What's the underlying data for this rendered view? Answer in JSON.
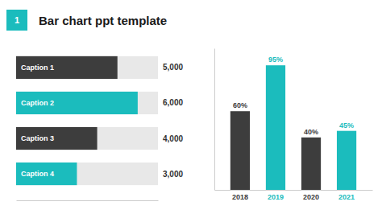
{
  "chart_data": [
    {
      "type": "bar",
      "orientation": "horizontal",
      "title": "Bar chart ppt template",
      "annotations": [
        "1"
      ],
      "categories": [
        "Caption 1",
        "Caption 2",
        "Caption 3",
        "Caption 4"
      ],
      "values": [
        5000,
        6000,
        4000,
        3000
      ],
      "value_labels": [
        "5,000",
        "6,000",
        "4,000",
        "3,000"
      ],
      "colors": [
        "#3d3d3d",
        "#1bbcbd",
        "#3d3d3d",
        "#1bbcbd"
      ],
      "xlim": [
        0,
        7000
      ],
      "data_labels": true,
      "tick_labels": "y",
      "grid": false
    },
    {
      "type": "bar",
      "categories": [
        "2018",
        "2019",
        "2020",
        "2021"
      ],
      "values": [
        60,
        95,
        40,
        45
      ],
      "value_labels": [
        "60%",
        "95%",
        "40%",
        "45%"
      ],
      "colors": [
        "#3d3d3d",
        "#1bbcbd",
        "#3d3d3d",
        "#1bbcbd"
      ],
      "ylim": [
        0,
        108
      ],
      "data_labels": true,
      "tick_labels": "x",
      "grid": false
    }
  ]
}
